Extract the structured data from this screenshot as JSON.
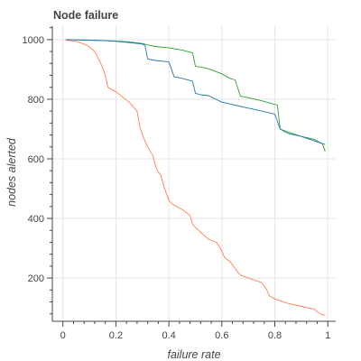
{
  "chart_data": {
    "type": "line",
    "title": "Node failure",
    "xlabel": "failure rate",
    "ylabel": "nodes alerted",
    "xlim": [
      -0.04,
      1.03
    ],
    "ylim": [
      55,
      1045
    ],
    "grid": true,
    "legend": "none",
    "xticks": [
      0,
      0.2,
      0.4,
      0.6,
      0.8,
      1
    ],
    "xtick_labels": [
      "0",
      "0.2",
      "0.4",
      "0.6",
      "0.8",
      "1"
    ],
    "yticks": [
      200,
      400,
      600,
      800,
      1000
    ],
    "ytick_labels": [
      "200",
      "400",
      "600",
      "800",
      "1000"
    ],
    "series": [
      {
        "color": "#2ca02c",
        "x": [
          0.01,
          0.05,
          0.1,
          0.15,
          0.2,
          0.25,
          0.3,
          0.32,
          0.35,
          0.4,
          0.45,
          0.49,
          0.5,
          0.52,
          0.55,
          0.6,
          0.63,
          0.65,
          0.67,
          0.7,
          0.75,
          0.79,
          0.81,
          0.82,
          0.85,
          0.9,
          0.95,
          0.98,
          0.99
        ],
        "y": [
          1000,
          999,
          998,
          997,
          995,
          992,
          987,
          982,
          977,
          972,
          965,
          955,
          910,
          908,
          902,
          885,
          870,
          865,
          810,
          805,
          795,
          785,
          780,
          700,
          690,
          675,
          665,
          650,
          625
        ]
      },
      {
        "color": "#1f77b4",
        "x": [
          0.01,
          0.05,
          0.1,
          0.15,
          0.2,
          0.25,
          0.3,
          0.31,
          0.32,
          0.35,
          0.4,
          0.42,
          0.45,
          0.49,
          0.5,
          0.52,
          0.55,
          0.6,
          0.65,
          0.7,
          0.75,
          0.8,
          0.82,
          0.85,
          0.9,
          0.95,
          0.99
        ],
        "y": [
          1000,
          999,
          998,
          997,
          994,
          990,
          985,
          980,
          935,
          930,
          925,
          875,
          870,
          860,
          820,
          815,
          812,
          790,
          780,
          770,
          760,
          750,
          700,
          685,
          675,
          660,
          648
        ]
      },
      {
        "color": "#ff7f50",
        "x": [
          0.01,
          0.05,
          0.08,
          0.1,
          0.12,
          0.14,
          0.15,
          0.16,
          0.17,
          0.2,
          0.25,
          0.28,
          0.29,
          0.3,
          0.31,
          0.32,
          0.34,
          0.35,
          0.36,
          0.37,
          0.38,
          0.4,
          0.41,
          0.43,
          0.45,
          0.48,
          0.49,
          0.5,
          0.55,
          0.58,
          0.6,
          0.61,
          0.63,
          0.64,
          0.66,
          0.67,
          0.7,
          0.75,
          0.77,
          0.78,
          0.8,
          0.85,
          0.9,
          0.95,
          0.97,
          0.99
        ],
        "y": [
          998,
          994,
          985,
          975,
          960,
          925,
          905,
          880,
          840,
          825,
          790,
          760,
          710,
          680,
          660,
          640,
          610,
          575,
          555,
          545,
          510,
          460,
          450,
          440,
          430,
          410,
          380,
          370,
          330,
          320,
          290,
          270,
          255,
          245,
          220,
          210,
          200,
          185,
          160,
          140,
          130,
          115,
          105,
          95,
          80,
          75
        ]
      }
    ]
  }
}
